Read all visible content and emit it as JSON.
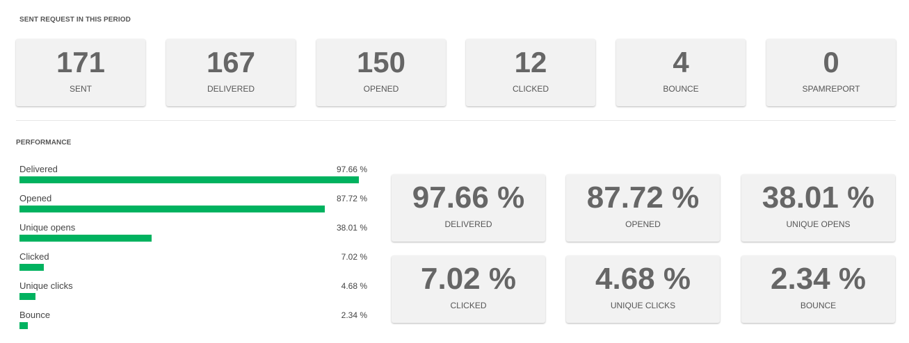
{
  "sent_section": {
    "title": "SENT REQUEST IN THIS PERIOD",
    "stats": [
      {
        "value": "171",
        "label": "SENT"
      },
      {
        "value": "167",
        "label": "DELIVERED"
      },
      {
        "value": "150",
        "label": "OPENED"
      },
      {
        "value": "12",
        "label": "CLICKED"
      },
      {
        "value": "4",
        "label": "BOUNCE"
      },
      {
        "value": "0",
        "label": "SPAMREPORT"
      }
    ]
  },
  "performance_section": {
    "title": "PERFORMANCE",
    "bar_color": "#00b25f",
    "bars": [
      {
        "label": "Delivered",
        "pct_text": "97.66 %",
        "fraction": 0.9766
      },
      {
        "label": "Opened",
        "pct_text": "87.72 %",
        "fraction": 0.8772
      },
      {
        "label": "Unique opens",
        "pct_text": "38.01 %",
        "fraction": 0.3801
      },
      {
        "label": "Clicked",
        "pct_text": "7.02 %",
        "fraction": 0.0702
      },
      {
        "label": "Unique clicks",
        "pct_text": "4.68 %",
        "fraction": 0.0468
      },
      {
        "label": "Bounce",
        "pct_text": "2.34 %",
        "fraction": 0.0234
      }
    ],
    "cards": [
      {
        "value": "97.66 %",
        "label": "DELIVERED"
      },
      {
        "value": "87.72 %",
        "label": "OPENED"
      },
      {
        "value": "38.01 %",
        "label": "UNIQUE OPENS"
      },
      {
        "value": "7.02 %",
        "label": "CLICKED"
      },
      {
        "value": "4.68 %",
        "label": "UNIQUE CLICKS"
      },
      {
        "value": "2.34 %",
        "label": "BOUNCE"
      }
    ]
  }
}
